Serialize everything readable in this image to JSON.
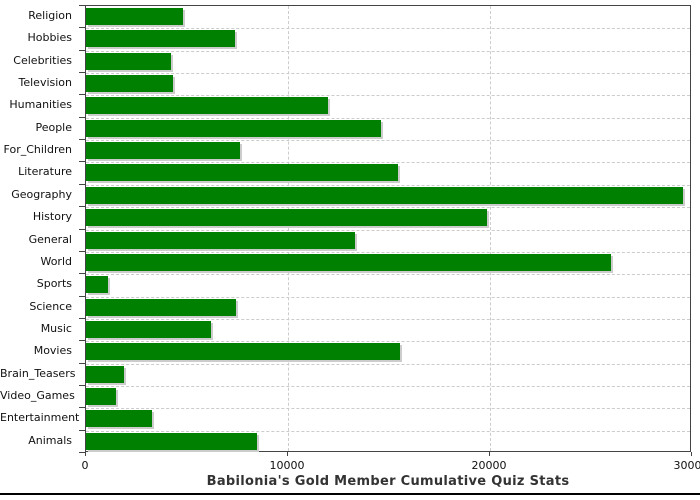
{
  "title": "Babilonia's Gold Member Cumulative Quiz Stats",
  "colors": {
    "bar": "#008000",
    "bar_shadow": "#cccccc",
    "grid": "#cccccc",
    "axis": "#444444",
    "text": "#111111",
    "title_text": "#333333",
    "background": "#ffffff"
  },
  "chart_data": {
    "type": "bar",
    "orientation": "horizontal",
    "title": "Babilonia's Gold Member Cumulative Quiz Stats",
    "xlabel": "",
    "ylabel": "",
    "categories": [
      "Religion",
      "Hobbies",
      "Celebrities",
      "Television",
      "Humanities",
      "People",
      "For_Children",
      "Literature",
      "Geography",
      "History",
      "General",
      "World",
      "Sports",
      "Science",
      "Music",
      "Movies",
      "Brain_Teasers",
      "Video_Games",
      "Entertainment",
      "Animals"
    ],
    "values": [
      4800,
      7400,
      4200,
      4300,
      12000,
      14600,
      7600,
      15450,
      29550,
      19850,
      13300,
      26000,
      1100,
      7450,
      6200,
      15550,
      1900,
      1480,
      3250,
      8450
    ],
    "xlim": [
      0,
      30000
    ],
    "xticks": [
      0,
      10000,
      20000,
      30000
    ],
    "xtick_labels": [
      "0",
      "10000",
      "20000",
      "30000"
    ],
    "grid": true,
    "legend": false
  }
}
